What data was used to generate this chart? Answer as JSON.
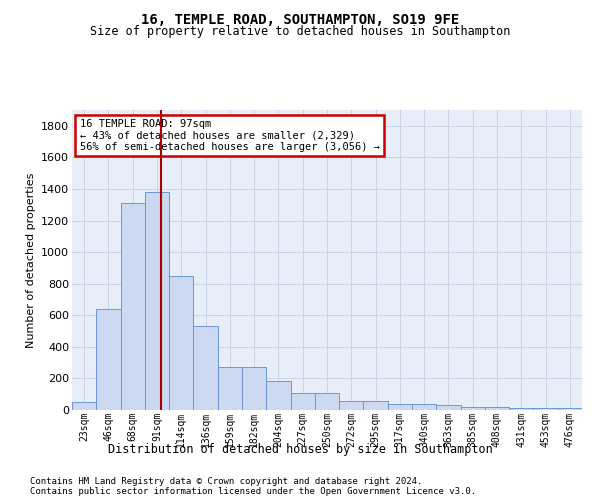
{
  "title": "16, TEMPLE ROAD, SOUTHAMPTON, SO19 9FE",
  "subtitle": "Size of property relative to detached houses in Southampton",
  "xlabel": "Distribution of detached houses by size in Southampton",
  "ylabel": "Number of detached properties",
  "footnote1": "Contains HM Land Registry data © Crown copyright and database right 2024.",
  "footnote2": "Contains public sector information licensed under the Open Government Licence v3.0.",
  "bar_color": "#ccd9f0",
  "bar_edge_color": "#6b96d6",
  "categories": [
    "23sqm",
    "46sqm",
    "68sqm",
    "91sqm",
    "114sqm",
    "136sqm",
    "159sqm",
    "182sqm",
    "204sqm",
    "227sqm",
    "250sqm",
    "272sqm",
    "295sqm",
    "317sqm",
    "340sqm",
    "363sqm",
    "385sqm",
    "408sqm",
    "431sqm",
    "453sqm",
    "476sqm"
  ],
  "values": [
    50,
    640,
    1310,
    1380,
    850,
    530,
    270,
    270,
    185,
    105,
    105,
    60,
    60,
    38,
    38,
    30,
    18,
    18,
    15,
    12,
    12
  ],
  "ylim": [
    0,
    1900
  ],
  "yticks": [
    0,
    200,
    400,
    600,
    800,
    1000,
    1200,
    1400,
    1600,
    1800
  ],
  "vline_x": 3.15,
  "annotation_title": "16 TEMPLE ROAD: 97sqm",
  "annotation_line1": "← 43% of detached houses are smaller (2,329)",
  "annotation_line2": "56% of semi-detached houses are larger (3,056) →",
  "annotation_box_color": "#ffffff",
  "annotation_box_edge": "#cc0000",
  "vline_color": "#aa0000",
  "grid_color": "#c8d4e8",
  "background_color": "#e8eef8"
}
